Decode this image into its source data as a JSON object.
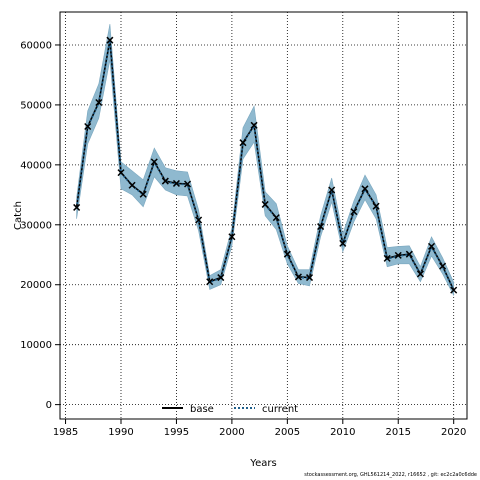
{
  "chart_data": {
    "type": "line",
    "xlabel": "Years",
    "ylabel": "Catch",
    "xlim": [
      1984.5,
      2021.2
    ],
    "ylim": [
      -2400,
      65500
    ],
    "xticks": [
      1985,
      1990,
      1995,
      2000,
      2005,
      2010,
      2015,
      2020
    ],
    "yticks": [
      0,
      10000,
      20000,
      30000,
      40000,
      50000,
      60000
    ],
    "grid": true,
    "legend_position": "bottom-center",
    "x": [
      1986,
      1987,
      1988,
      1989,
      1990,
      1991,
      1992,
      1993,
      1994,
      1995,
      1996,
      1997,
      1998,
      1999,
      2000,
      2001,
      2002,
      2003,
      2004,
      2005,
      2006,
      2007,
      2008,
      2009,
      2010,
      2011,
      2012,
      2013,
      2014,
      2015,
      2016,
      2017,
      2018,
      2019,
      2020
    ],
    "observed": [
      32900,
      46400,
      50400,
      60800,
      38700,
      36600,
      35100,
      40500,
      37300,
      36900,
      36800,
      30800,
      20500,
      21200,
      28000,
      43700,
      46600,
      33400,
      31200,
      25100,
      21300,
      21200,
      29700,
      35800,
      26900,
      32200,
      36000,
      33100,
      24400,
      24900,
      25100,
      21800,
      26400,
      23100,
      19100
    ],
    "series": [
      {
        "name": "base",
        "color": "#000000",
        "values": [
          32900,
          46400,
          50400,
          60800,
          38700,
          36600,
          35100,
          40500,
          37300,
          36900,
          36800,
          30800,
          20500,
          21200,
          28000,
          43700,
          46600,
          33400,
          31200,
          25100,
          21300,
          21200,
          29700,
          35800,
          26900,
          32200,
          36000,
          33100,
          24400,
          24900,
          25100,
          21800,
          26400,
          23100,
          19100
        ]
      },
      {
        "name": "current",
        "color": "#1f5f8b",
        "values": [
          32800,
          46300,
          50300,
          60700,
          38600,
          36500,
          35000,
          40400,
          37200,
          36800,
          36700,
          30700,
          20400,
          21100,
          27900,
          43600,
          46500,
          33300,
          31100,
          25000,
          21200,
          21100,
          29600,
          35700,
          26800,
          32100,
          35900,
          33000,
          24300,
          24800,
          25000,
          21700,
          26300,
          23000,
          19000
        ],
        "lower": [
          31000,
          43500,
          47800,
          57500,
          36000,
          35000,
          33000,
          38000,
          35800,
          35000,
          34800,
          29000,
          19200,
          20000,
          26500,
          41000,
          43800,
          31500,
          29200,
          23500,
          20200,
          19800,
          28000,
          33800,
          25500,
          30500,
          34200,
          31000,
          23000,
          23500,
          23500,
          20500,
          24800,
          21800,
          18200
        ],
        "upper": [
          34500,
          49000,
          53500,
          63500,
          40500,
          39000,
          37500,
          42800,
          39500,
          39000,
          38800,
          32500,
          21500,
          22500,
          29500,
          46200,
          49800,
          35500,
          33500,
          26500,
          22500,
          22500,
          31500,
          37800,
          28500,
          34000,
          38300,
          35000,
          26200,
          26400,
          26500,
          23000,
          28000,
          24500,
          20400
        ],
        "band_color": "#8fb9cf"
      }
    ],
    "legend": [
      "base",
      "current"
    ]
  },
  "footer": "stockassessment.org, GHL561214_2022, r16652 , git: ec2c2a0c6dde"
}
